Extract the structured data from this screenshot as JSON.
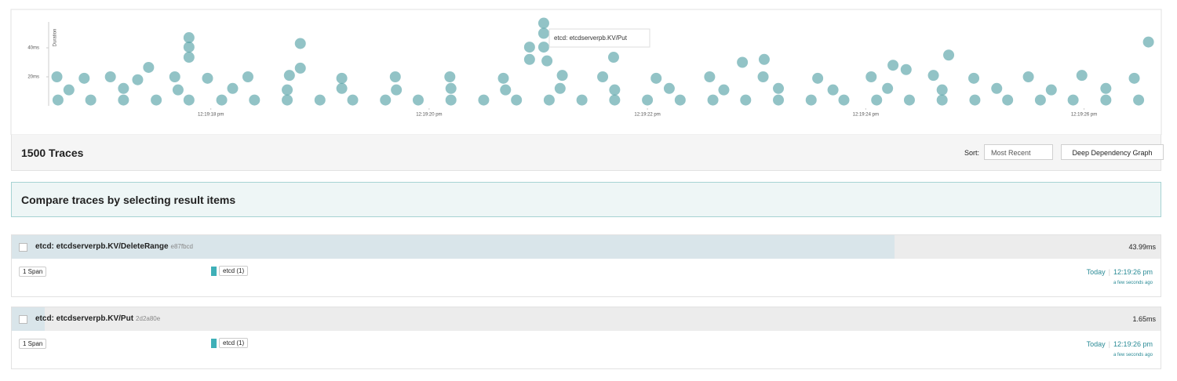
{
  "chart_data": {
    "type": "scatter",
    "y_label": "Duration",
    "tooltip": "etcd: etcdserverpb.KV/Put",
    "color": "#4a9ba0",
    "xlim": [
      16.5,
      26.6
    ],
    "ylim": [
      0,
      60
    ],
    "xticks": [
      {
        "value": 18,
        "label": "12:19:18 pm"
      },
      {
        "value": 20,
        "label": "12:19:20 pm"
      },
      {
        "value": 22,
        "label": "12:19:22 pm"
      },
      {
        "value": 24,
        "label": "12:19:24 pm"
      },
      {
        "value": 26,
        "label": "12:19:26 pm"
      }
    ],
    "yticks": [
      {
        "value": 20,
        "label": "20ms"
      },
      {
        "value": 40,
        "label": "40ms"
      }
    ],
    "x": [
      17.8,
      17.8,
      17.8,
      17.43,
      18.82,
      18.82,
      20.92,
      20.92,
      21.05,
      21.05,
      21.05,
      21.08,
      21.69,
      22.87,
      23.07,
      24.25,
      24.37,
      24.76,
      26.59,
      16.59,
      16.84,
      17.08,
      17.33,
      17.67,
      17.97,
      18.34,
      18.72,
      19.2,
      19.69,
      20.19,
      20.68,
      21.22,
      21.59,
      22.08,
      22.57,
      23.06,
      23.56,
      24.05,
      24.62,
      24.99,
      25.49,
      25.98,
      26.46,
      16.7,
      17.2,
      17.7,
      18.2,
      18.7,
      19.2,
      19.7,
      20.2,
      20.7,
      21.2,
      21.7,
      22.2,
      22.7,
      23.2,
      23.7,
      24.2,
      24.7,
      25.2,
      25.7,
      26.2,
      16.6,
      16.9,
      17.2,
      17.5,
      17.8,
      18.1,
      18.4,
      18.7,
      19.0,
      19.3,
      19.6,
      19.9,
      20.2,
      20.5,
      20.8,
      21.1,
      21.4,
      21.7,
      22.0,
      22.3,
      22.6,
      22.9,
      23.2,
      23.5,
      23.8,
      24.1,
      24.4,
      24.7,
      25.0,
      25.3,
      25.6,
      25.9,
      26.2,
      26.5
    ],
    "values": [
      47,
      40.5,
      33.5,
      26.5,
      43,
      26,
      40.5,
      32,
      57,
      50,
      40.5,
      31,
      33.5,
      30,
      32,
      28,
      25,
      35,
      44,
      20,
      19,
      20,
      18,
      20,
      19,
      20,
      21,
      19,
      20,
      20,
      19,
      21,
      20,
      19,
      20,
      20,
      19,
      20,
      21,
      19,
      20,
      21,
      19,
      11,
      12,
      11,
      12,
      11,
      12,
      11,
      12,
      11,
      12,
      11,
      12,
      11,
      12,
      11,
      12,
      11,
      12,
      11,
      12,
      4,
      4,
      4,
      4,
      4,
      4,
      4,
      4,
      4,
      4,
      4,
      4,
      4,
      4,
      4,
      4,
      4,
      4,
      4,
      4,
      4,
      4,
      4,
      4,
      4,
      4,
      4,
      4,
      4,
      4,
      4,
      4,
      4,
      4
    ]
  },
  "results_header": {
    "count": "1500 Traces",
    "sort_label": "Sort:",
    "sort_value": "Most Recent",
    "button": "Deep Dependency Graph"
  },
  "banner": "Compare traces by selecting result items",
  "traces": [
    {
      "title": "etcd: etcdserverpb.KV/DeleteRange",
      "id": "e87fbcd",
      "duration": "43.99ms",
      "spans": "1 Span",
      "service": "etcd (1)",
      "date": "Today",
      "time": "12:19:26 pm",
      "relative": "a few seconds ago"
    },
    {
      "title": "etcd: etcdserverpb.KV/Put",
      "id": "2d2a80e",
      "duration": "1.65ms",
      "spans": "1 Span",
      "service": "etcd (1)",
      "date": "Today",
      "time": "12:19:26 pm",
      "relative": "a few seconds ago"
    }
  ]
}
